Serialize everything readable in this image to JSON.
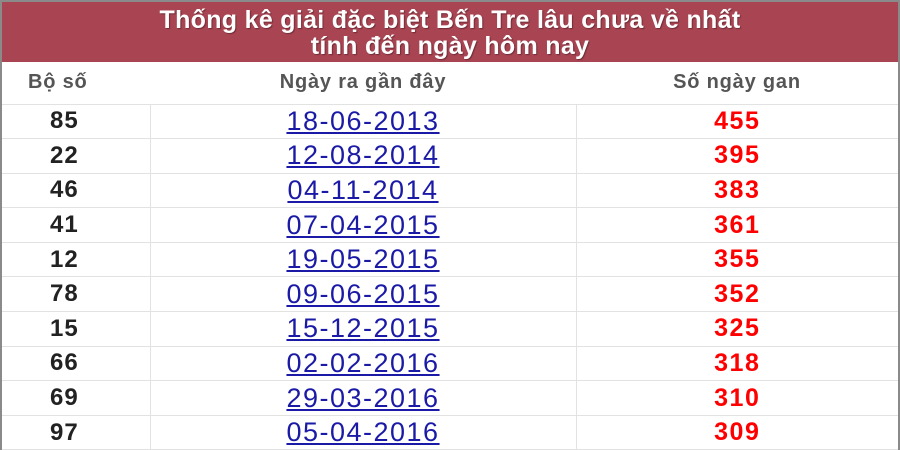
{
  "title": {
    "line1": "Thống kê giải đặc biệt Bến Tre lâu chưa về nhất",
    "line2": "tính đến ngày hôm nay"
  },
  "columns": [
    "Bộ số",
    "Ngày ra gần đây",
    "Số ngày gan"
  ],
  "colors": {
    "header_bg": "#a94452",
    "link": "#1a1aa6",
    "gan": "#ff0000"
  },
  "rows": [
    {
      "bo_so": "85",
      "ngay": "18-06-2013",
      "gan": "455"
    },
    {
      "bo_so": "22",
      "ngay": "12-08-2014",
      "gan": "395"
    },
    {
      "bo_so": "46",
      "ngay": "04-11-2014",
      "gan": "383"
    },
    {
      "bo_so": "41",
      "ngay": "07-04-2015",
      "gan": "361"
    },
    {
      "bo_so": "12",
      "ngay": "19-05-2015",
      "gan": "355"
    },
    {
      "bo_so": "78",
      "ngay": "09-06-2015",
      "gan": "352"
    },
    {
      "bo_so": "15",
      "ngay": "15-12-2015",
      "gan": "325"
    },
    {
      "bo_so": "66",
      "ngay": "02-02-2016",
      "gan": "318"
    },
    {
      "bo_so": "69",
      "ngay": "29-03-2016",
      "gan": "310"
    },
    {
      "bo_so": "97",
      "ngay": "05-04-2016",
      "gan": "309"
    }
  ]
}
